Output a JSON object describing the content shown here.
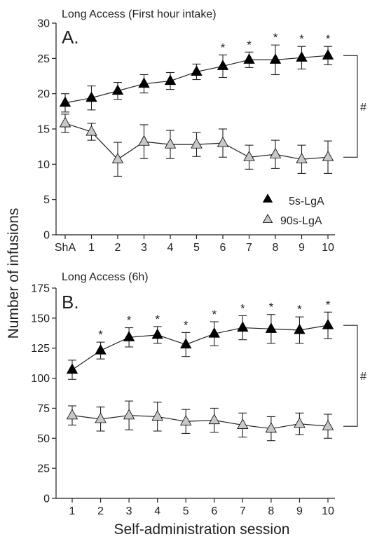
{
  "figure": {
    "ylabel": "Number of infusions",
    "xlabel": "Self-administration session"
  },
  "legend": {
    "entries": [
      {
        "label": "5s-LgA",
        "color": "#000000"
      },
      {
        "label": "90s-LgA",
        "color": "#c8c8c8"
      }
    ]
  },
  "chart_data": [
    {
      "type": "line",
      "panel_label": "A.",
      "title": "Long Access (First hour intake)",
      "categories": [
        "ShA",
        "1",
        "2",
        "3",
        "4",
        "5",
        "6",
        "7",
        "8",
        "9",
        "10"
      ],
      "ylim": [
        0,
        30
      ],
      "yticks": [
        0,
        5,
        10,
        15,
        20,
        25,
        30
      ],
      "series": [
        {
          "name": "5s-LgA",
          "color": "#000000",
          "values": [
            18.7,
            19.4,
            20.4,
            21.4,
            21.8,
            23.1,
            23.9,
            24.8,
            24.8,
            25.1,
            25.4
          ],
          "errors": [
            1.3,
            1.7,
            1.2,
            1.3,
            1.2,
            1.1,
            1.6,
            1.1,
            2.1,
            1.6,
            1.3
          ]
        },
        {
          "name": "90s-LgA",
          "color": "#c8c8c8",
          "values": [
            15.8,
            14.6,
            10.7,
            13.2,
            12.8,
            12.8,
            13.0,
            11.0,
            11.4,
            10.7,
            11.0
          ],
          "errors": [
            1.3,
            1.2,
            2.4,
            2.4,
            2.0,
            1.7,
            2.0,
            1.7,
            2.0,
            2.0,
            2.3
          ]
        }
      ],
      "significance": {
        "marker": "*",
        "indices": [
          6,
          7,
          8,
          9,
          10
        ]
      },
      "group_bracket": "#"
    },
    {
      "type": "line",
      "panel_label": "B.",
      "title": "Long Access (6h)",
      "categories": [
        "1",
        "2",
        "3",
        "4",
        "5",
        "6",
        "7",
        "8",
        "9",
        "10"
      ],
      "ylim": [
        0,
        175
      ],
      "yticks": [
        0,
        25,
        50,
        75,
        100,
        125,
        150,
        175
      ],
      "series": [
        {
          "name": "5s-LgA",
          "color": "#000000",
          "values": [
            107,
            123,
            134,
            136,
            128,
            137,
            142,
            141,
            140,
            144
          ],
          "errors": [
            8,
            7,
            8,
            7,
            10,
            10,
            10,
            12,
            11,
            11
          ]
        },
        {
          "name": "90s-LgA",
          "color": "#c8c8c8",
          "values": [
            69,
            66,
            69,
            68,
            64,
            65,
            61,
            58,
            62,
            60
          ],
          "errors": [
            8,
            10,
            12,
            12,
            10,
            10,
            10,
            10,
            9,
            10
          ]
        }
      ],
      "significance": {
        "marker": "*",
        "indices": [
          1,
          2,
          3,
          4,
          5,
          6,
          7,
          8,
          9
        ]
      },
      "group_bracket": "#"
    }
  ]
}
